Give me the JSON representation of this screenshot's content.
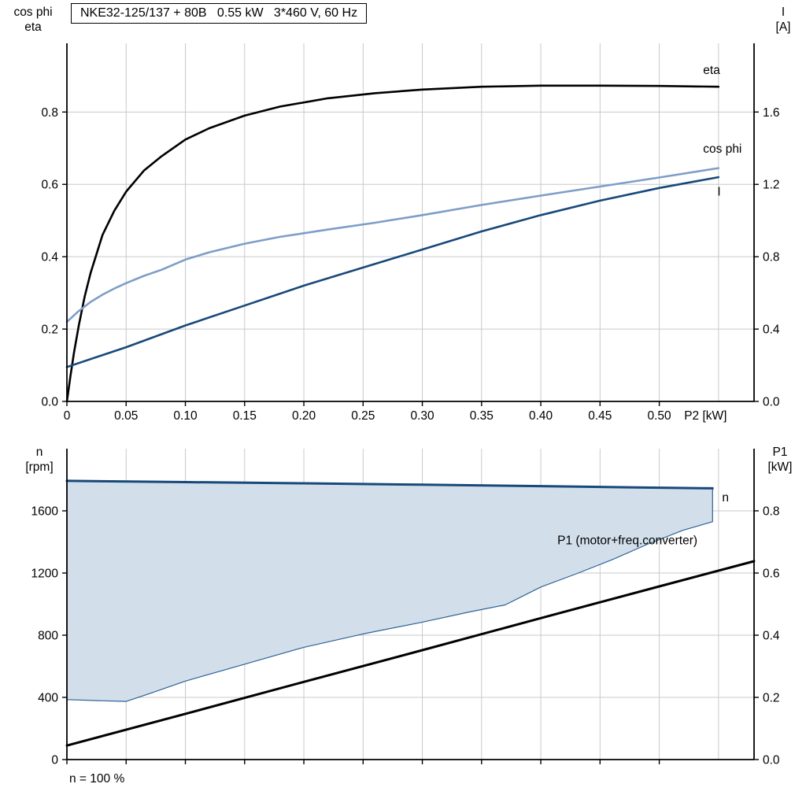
{
  "title_box": "NKE32-125/137 + 80B   0.55 kW   3*460 V, 60 Hz",
  "footer_note": "n = 100 %",
  "axis_corner_labels": {
    "top_left": "cos phi\neta",
    "top_right": "I\n[A]",
    "bottom_left": "n\n[rpm]",
    "bottom_right": "P1\n[kW]"
  },
  "colors": {
    "grid": "#c9c9c9",
    "axis": "#000000",
    "eta": "#000000",
    "cos_phi": "#7d9ec8",
    "current": "#17497a",
    "speed": "#17497a",
    "p1": "#000000",
    "band_fill": "#d2dfeb",
    "band_edge": "#2d6296"
  },
  "chart_data": [
    {
      "id": "upper",
      "type": "line",
      "title": "NKE32-125/137 + 80B   0.55 kW   3*460 V, 60 Hz",
      "x_axis": {
        "label": "P2 [kW]",
        "label_x": 0.521,
        "lim": [
          0,
          0.58
        ],
        "ticks": [
          0,
          0.05,
          0.1,
          0.15,
          0.2,
          0.25,
          0.3,
          0.35,
          0.4,
          0.45,
          0.5
        ],
        "tick_labels": [
          "0",
          "0.05",
          "0.10",
          "0.15",
          "0.20",
          "0.25",
          "0.30",
          "0.35",
          "0.40",
          "0.45",
          "0.50"
        ],
        "grid_extra": [
          0.55
        ]
      },
      "left_axis": {
        "label": "cos phi / eta",
        "lim": [
          0,
          0.99
        ],
        "ticks": [
          0,
          0.2,
          0.4,
          0.6,
          0.8
        ],
        "tick_labels": [
          "0.0",
          "0.2",
          "0.4",
          "0.6",
          "0.8"
        ]
      },
      "right_axis": {
        "label": "I [A]",
        "lim": [
          0,
          1.98
        ],
        "ticks": [
          0,
          0.4,
          0.8,
          1.2,
          1.6
        ],
        "tick_labels": [
          "0.0",
          "0.4",
          "0.8",
          "1.2",
          "1.6"
        ]
      },
      "series": [
        {
          "name": "eta",
          "axis": "left",
          "color": "#000000",
          "width": 2.6,
          "x": [
            0,
            0.003,
            0.006,
            0.01,
            0.015,
            0.02,
            0.03,
            0.04,
            0.05,
            0.065,
            0.08,
            0.1,
            0.12,
            0.15,
            0.18,
            0.22,
            0.26,
            0.3,
            0.35,
            0.4,
            0.45,
            0.5,
            0.55
          ],
          "y": [
            0,
            0.07,
            0.135,
            0.21,
            0.29,
            0.355,
            0.46,
            0.527,
            0.58,
            0.638,
            0.678,
            0.724,
            0.755,
            0.79,
            0.815,
            0.838,
            0.852,
            0.862,
            0.87,
            0.873,
            0.873,
            0.872,
            0.87
          ],
          "label": {
            "text": "eta",
            "x": 0.537,
            "y": 0.916
          }
        },
        {
          "name": "cos phi",
          "axis": "left",
          "color": "#7d9ec8",
          "width": 2.6,
          "x": [
            0,
            0.01,
            0.02,
            0.03,
            0.04,
            0.05,
            0.065,
            0.08,
            0.1,
            0.12,
            0.15,
            0.18,
            0.22,
            0.26,
            0.3,
            0.35,
            0.4,
            0.45,
            0.5,
            0.55
          ],
          "y": [
            0.22,
            0.25,
            0.275,
            0.295,
            0.312,
            0.327,
            0.347,
            0.364,
            0.392,
            0.412,
            0.436,
            0.455,
            0.475,
            0.494,
            0.515,
            0.543,
            0.569,
            0.594,
            0.619,
            0.645
          ],
          "label": {
            "text": "cos phi",
            "x": 0.537,
            "y": 0.698
          }
        },
        {
          "name": "I",
          "axis": "right",
          "color": "#17497a",
          "width": 2.6,
          "x": [
            0,
            0.05,
            0.1,
            0.15,
            0.2,
            0.25,
            0.3,
            0.35,
            0.4,
            0.45,
            0.5,
            0.55
          ],
          "y": [
            0.19,
            0.3,
            0.42,
            0.53,
            0.64,
            0.74,
            0.84,
            0.94,
            1.03,
            1.11,
            1.18,
            1.24
          ],
          "label": {
            "text": "I",
            "x": 0.549,
            "y": 1.16
          }
        }
      ]
    },
    {
      "id": "lower",
      "type": "line",
      "x_axis": {
        "label": "",
        "label_x": 0.521,
        "lim": [
          0,
          0.58
        ],
        "ticks": [
          0,
          0.05,
          0.1,
          0.15,
          0.2,
          0.25,
          0.3,
          0.35,
          0.4,
          0.45,
          0.5
        ],
        "tick_labels": [],
        "grid_extra": [
          0.55
        ]
      },
      "left_axis": {
        "label": "n [rpm]",
        "lim": [
          0,
          2000
        ],
        "ticks": [
          0,
          400,
          800,
          1200,
          1600
        ],
        "tick_labels": [
          "0",
          "400",
          "800",
          "1200",
          "1600"
        ]
      },
      "right_axis": {
        "label": "P1 [kW]",
        "lim": [
          0,
          1.0
        ],
        "ticks": [
          0,
          0.2,
          0.4,
          0.6,
          0.8
        ],
        "tick_labels": [
          "0.0",
          "0.2",
          "0.4",
          "0.6",
          "0.8"
        ]
      },
      "band": {
        "name": "speed-operating-range",
        "fill": "#d2dfeb",
        "edge_color": "#2d6296",
        "edge_width": 1.2,
        "upper_x": [
          0,
          0.1,
          0.2,
          0.3,
          0.4,
          0.48,
          0.545
        ],
        "upper_y": [
          1793,
          1785,
          1777,
          1768,
          1759,
          1751,
          1745
        ],
        "lower_x": [
          0,
          0.03,
          0.05,
          0.07,
          0.1,
          0.13,
          0.16,
          0.2,
          0.25,
          0.3,
          0.34,
          0.37,
          0.4,
          0.43,
          0.46,
          0.49,
          0.52,
          0.545
        ],
        "lower_y": [
          386,
          378,
          374,
          425,
          505,
          570,
          635,
          722,
          808,
          884,
          950,
          995,
          1110,
          1195,
          1285,
          1385,
          1475,
          1530
        ]
      },
      "series": [
        {
          "name": "n",
          "axis": "left",
          "color": "#17497a",
          "width": 3.0,
          "x": [
            0,
            0.1,
            0.2,
            0.3,
            0.4,
            0.48,
            0.545
          ],
          "y": [
            1793,
            1785,
            1777,
            1768,
            1759,
            1751,
            1745
          ],
          "label": {
            "text": "n",
            "x": 0.553,
            "y": 1685
          }
        },
        {
          "name": "P1",
          "axis": "right",
          "color": "#000000",
          "width": 3.0,
          "x": [
            0,
            0.1,
            0.2,
            0.3,
            0.4,
            0.5,
            0.58
          ],
          "y": [
            0.045,
            0.147,
            0.25,
            0.352,
            0.455,
            0.557,
            0.638
          ],
          "label": {
            "text": "P1 (motor+freq.converter)",
            "x": 0.414,
            "y": 0.705
          }
        }
      ]
    }
  ]
}
